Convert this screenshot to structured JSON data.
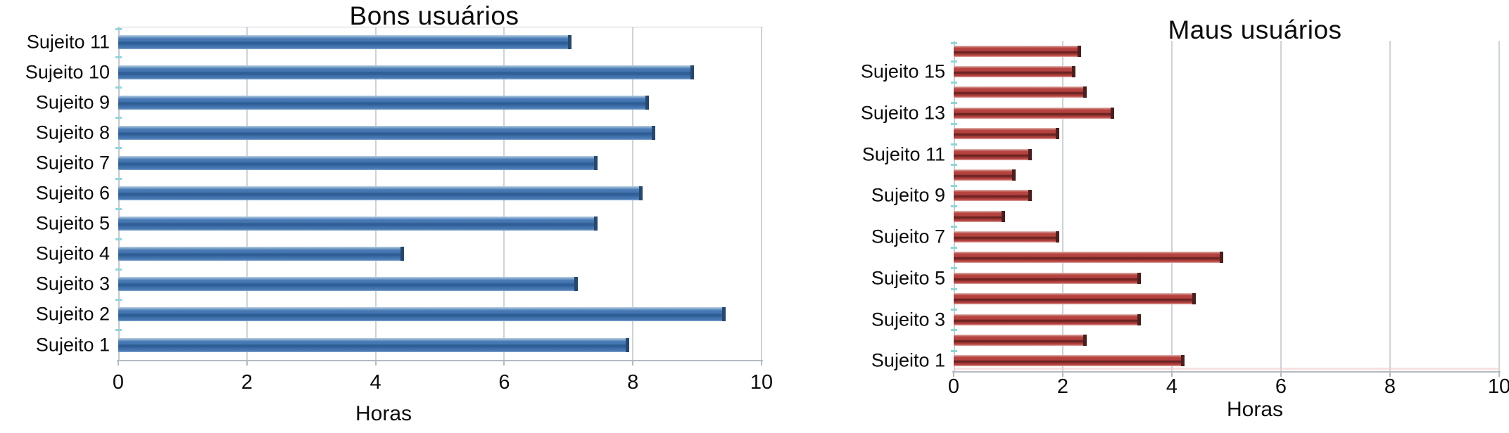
{
  "figure": {
    "background": "#ffffff"
  },
  "style": {
    "gridline_color": "#ccd3da",
    "axis_color": "#b4bac0",
    "ytick_dash_color": "#8ed7dc",
    "text_color": "#111111"
  },
  "chart_data": [
    {
      "type": "bar",
      "orientation": "horizontal",
      "title": "Bons usuários",
      "xlabel": "Horas",
      "xlim": [
        0,
        10
      ],
      "xticks": [
        "0",
        "2",
        "4",
        "6",
        "8",
        "10"
      ],
      "grid": true,
      "row_order": "top-to-bottom",
      "bar_color_name": "blue",
      "colors": {
        "bar_body": "#4a7ab5",
        "bar_stripe": "#2e5e95",
        "bar_highlight": "#b9cfe3",
        "bar_end_cap": "#27486e"
      },
      "bars": [
        {
          "label": "Sujeito 11",
          "value": 7.1
        },
        {
          "label": "Sujeito 10",
          "value": 9.0
        },
        {
          "label": "Sujeito 9",
          "value": 8.3
        },
        {
          "label": "Sujeito 8",
          "value": 8.4
        },
        {
          "label": "Sujeito 7",
          "value": 7.5
        },
        {
          "label": "Sujeito 6",
          "value": 8.2
        },
        {
          "label": "Sujeito 5",
          "value": 7.5
        },
        {
          "label": "Sujeito 4",
          "value": 4.5
        },
        {
          "label": "Sujeito 3",
          "value": 7.2
        },
        {
          "label": "Sujeito 2",
          "value": 9.5
        },
        {
          "label": "Sujeito 1",
          "value": 8.0
        }
      ]
    },
    {
      "type": "bar",
      "orientation": "horizontal",
      "title": "Maus usuários",
      "xlabel": "Horas",
      "xlim": [
        0,
        10
      ],
      "xticks": [
        "0",
        "2",
        "4",
        "6",
        "8",
        "10"
      ],
      "grid": true,
      "row_order": "top-to-bottom",
      "bar_color_name": "red",
      "colors": {
        "bar_body": "#b5423f",
        "bar_stripe": "#6e2523",
        "bar_highlight": "#e8c2bd",
        "bar_end_cap": "#4a1f1e"
      },
      "bars": [
        {
          "label": "",
          "value": 2.4
        },
        {
          "label": "Sujeito 15",
          "value": 2.3
        },
        {
          "label": "",
          "value": 2.5
        },
        {
          "label": "Sujeito 13",
          "value": 3.0
        },
        {
          "label": "",
          "value": 2.0
        },
        {
          "label": "Sujeito 11",
          "value": 1.5
        },
        {
          "label": "",
          "value": 1.2
        },
        {
          "label": "Sujeito 9",
          "value": 1.5
        },
        {
          "label": "",
          "value": 1.0
        },
        {
          "label": "Sujeito 7",
          "value": 2.0
        },
        {
          "label": "",
          "value": 5.0
        },
        {
          "label": "Sujeito 5",
          "value": 3.5
        },
        {
          "label": "",
          "value": 4.5
        },
        {
          "label": "Sujeito 3",
          "value": 3.5
        },
        {
          "label": "",
          "value": 2.5
        },
        {
          "label": "Sujeito 1",
          "value": 4.3
        }
      ]
    }
  ]
}
